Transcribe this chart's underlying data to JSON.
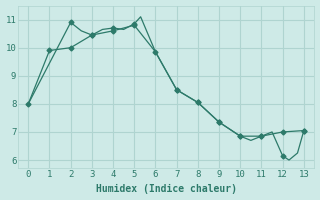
{
  "xlabel": "Humidex (Indice chaleur)",
  "bg_color": "#ceeae7",
  "grid_color": "#afd4d0",
  "line_color": "#2d7a6a",
  "line1_x": [
    0,
    1,
    2,
    3,
    4,
    5,
    6,
    7,
    8,
    9,
    10,
    11,
    12,
    13
  ],
  "line1_y": [
    8.0,
    9.9,
    10.0,
    10.45,
    10.6,
    10.8,
    9.85,
    8.5,
    8.05,
    7.35,
    6.85,
    6.85,
    7.0,
    7.05
  ],
  "line2_x": [
    0,
    2,
    2.5,
    3,
    3.5,
    4,
    4.5,
    5,
    5.3,
    6,
    7,
    8,
    9,
    9.5,
    10,
    10.5,
    11,
    11.5,
    12,
    12.3,
    12.7,
    13
  ],
  "line2_y": [
    8.0,
    10.9,
    10.6,
    10.45,
    10.65,
    10.7,
    10.65,
    10.85,
    11.1,
    9.85,
    8.5,
    8.05,
    7.35,
    7.1,
    6.85,
    6.7,
    6.85,
    7.0,
    6.15,
    6.0,
    6.25,
    7.05
  ],
  "marker2_x": [
    2,
    3,
    4,
    5,
    7,
    8,
    9,
    10,
    11,
    12,
    13
  ],
  "marker2_y": [
    10.9,
    10.45,
    10.7,
    10.85,
    8.5,
    8.05,
    7.35,
    6.85,
    6.85,
    6.15,
    7.05
  ],
  "xlim": [
    -0.5,
    13.5
  ],
  "ylim": [
    5.7,
    11.5
  ],
  "xticks": [
    0,
    1,
    2,
    3,
    4,
    5,
    6,
    7,
    8,
    9,
    10,
    11,
    12,
    13
  ],
  "yticks": [
    6,
    7,
    8,
    9,
    10,
    11
  ]
}
